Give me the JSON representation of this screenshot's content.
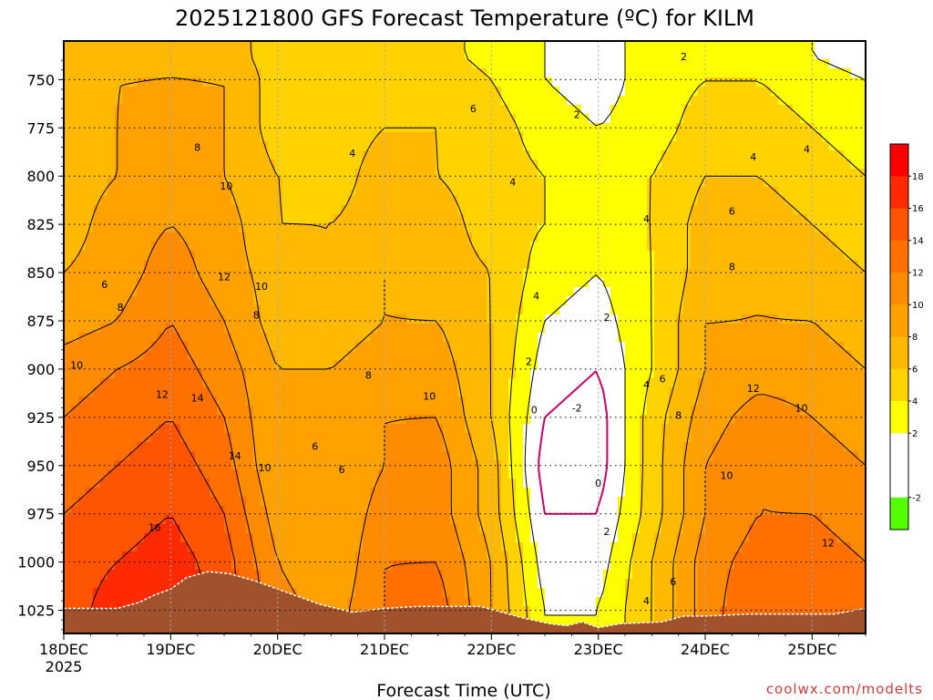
{
  "title": "2025121800 GFS Forecast Temperature (ºC) for KILM",
  "credit": "coolwx.com/modelts",
  "chart_data": {
    "type": "heatmap",
    "title": "2025121800 GFS Forecast Temperature (ºC) for KILM",
    "xlabel": "Forecast Time (UTC)",
    "ylabel": "",
    "x_ticks": [
      {
        "label": "18DEC",
        "sublabel": "2025",
        "day": 0
      },
      {
        "label": "19DEC",
        "day": 1
      },
      {
        "label": "20DEC",
        "day": 2
      },
      {
        "label": "21DEC",
        "day": 3
      },
      {
        "label": "22DEC",
        "day": 4
      },
      {
        "label": "23DEC",
        "day": 5
      },
      {
        "label": "24DEC",
        "day": 6
      },
      {
        "label": "25DEC",
        "day": 7
      }
    ],
    "xlim_days": [
      0,
      7.5
    ],
    "y_ticks": [
      750,
      775,
      800,
      825,
      850,
      875,
      900,
      925,
      950,
      975,
      1000,
      1025
    ],
    "ylim_hpa": [
      730,
      1037
    ],
    "levels_hpa": [
      750,
      775,
      800,
      825,
      850,
      875,
      900,
      925,
      950,
      975,
      1000,
      1025
    ],
    "times_days": [
      0,
      0.5,
      1,
      1.5,
      2,
      2.5,
      3,
      3.5,
      4,
      4.5,
      5,
      5.5,
      6,
      6.5,
      7,
      7.5
    ],
    "temperature_grid": [
      [
        6,
        7,
        8,
        7,
        5,
        4,
        4,
        5,
        3,
        2,
        1,
        3,
        3,
        3,
        2,
        1
      ],
      [
        7,
        8,
        8,
        8,
        5,
        4,
        5,
        6,
        4,
        2,
        1,
        3,
        4,
        4,
        3,
        2
      ],
      [
        7,
        8,
        9,
        8,
        5,
        5,
        6,
        6,
        5,
        3,
        2,
        3,
        5,
        5,
        4,
        3
      ],
      [
        7,
        8,
        9,
        8,
        6,
        5,
        7,
        6,
        5,
        4,
        3,
        4,
        6,
        6,
        5,
        4
      ],
      [
        7,
        9,
        10,
        9,
        6,
        6,
        7,
        7,
        5,
        4,
        3,
        4,
        7,
        7,
        6,
        5
      ],
      [
        8,
        9,
        11,
        9,
        7,
        6,
        8,
        7,
        6,
        3,
        2,
        4,
        7,
        8,
        7,
        6
      ],
      [
        9,
        10,
        12,
        10,
        7,
        7,
        8,
        8,
        6,
        2,
        1,
        4,
        8,
        8,
        8,
        7
      ],
      [
        11,
        12,
        13,
        11,
        8,
        8,
        9,
        9,
        6,
        1,
        0,
        4,
        8,
        9,
        9,
        8
      ],
      [
        12,
        13,
        14,
        12,
        8,
        8,
        10,
        10,
        6,
        0,
        -1,
        5,
        9,
        11,
        10,
        9
      ],
      [
        13,
        14,
        15,
        13,
        8,
        8,
        10,
        11,
        7,
        -1,
        -1,
        5,
        10,
        12,
        11,
        10
      ],
      [
        14,
        15,
        16,
        14,
        9,
        8,
        11,
        11,
        7,
        0,
        0,
        5,
        10,
        12,
        12,
        11
      ],
      [
        15,
        16,
        17,
        15,
        10,
        8,
        12,
        12,
        8,
        1,
        1,
        6,
        11,
        13,
        13,
        12
      ],
      [
        15,
        17,
        18,
        15,
        11,
        9,
        12,
        13,
        8,
        2,
        2,
        6,
        11,
        14,
        14,
        13
      ]
    ],
    "grid_pressure_hpa": [
      738,
      750,
      775,
      800,
      825,
      850,
      875,
      900,
      925,
      950,
      975,
      1000,
      1025
    ],
    "contour_labels": [
      {
        "t": 0.38,
        "p": 856,
        "text": "6"
      },
      {
        "t": 0.53,
        "p": 868,
        "text": "8"
      },
      {
        "t": 0.12,
        "p": 898,
        "text": "10"
      },
      {
        "t": 0.92,
        "p": 913,
        "text": "12"
      },
      {
        "t": 0.85,
        "p": 982,
        "text": "16"
      },
      {
        "t": 1.52,
        "p": 805,
        "text": "10"
      },
      {
        "t": 1.5,
        "p": 852,
        "text": "12"
      },
      {
        "t": 1.25,
        "p": 785,
        "text": "8"
      },
      {
        "t": 1.25,
        "p": 915,
        "text": "14"
      },
      {
        "t": 1.6,
        "p": 945,
        "text": "14"
      },
      {
        "t": 1.85,
        "p": 857,
        "text": "10"
      },
      {
        "t": 1.8,
        "p": 872,
        "text": "8"
      },
      {
        "t": 1.88,
        "p": 951,
        "text": "10"
      },
      {
        "t": 2.35,
        "p": 940,
        "text": "6"
      },
      {
        "t": 2.6,
        "p": 952,
        "text": "6"
      },
      {
        "t": 2.7,
        "p": 788,
        "text": "4"
      },
      {
        "t": 2.85,
        "p": 903,
        "text": "8"
      },
      {
        "t": 3.42,
        "p": 914,
        "text": "10"
      },
      {
        "t": 3.83,
        "p": 765,
        "text": "6"
      },
      {
        "t": 4.2,
        "p": 803,
        "text": "4"
      },
      {
        "t": 4.42,
        "p": 862,
        "text": "4"
      },
      {
        "t": 4.35,
        "p": 896,
        "text": "2"
      },
      {
        "t": 4.4,
        "p": 921,
        "text": "0"
      },
      {
        "t": 4.8,
        "p": 920,
        "text": "-2"
      },
      {
        "t": 5.0,
        "p": 959,
        "text": "0"
      },
      {
        "t": 5.08,
        "p": 873,
        "text": "2"
      },
      {
        "t": 5.08,
        "p": 984,
        "text": "2"
      },
      {
        "t": 4.8,
        "p": 768,
        "text": "2"
      },
      {
        "t": 5.8,
        "p": 738,
        "text": "2"
      },
      {
        "t": 5.45,
        "p": 822,
        "text": "4"
      },
      {
        "t": 5.45,
        "p": 908,
        "text": "4"
      },
      {
        "t": 5.6,
        "p": 905,
        "text": "6"
      },
      {
        "t": 5.7,
        "p": 1010,
        "text": "6"
      },
      {
        "t": 5.45,
        "p": 1020,
        "text": "4"
      },
      {
        "t": 5.75,
        "p": 924,
        "text": "8"
      },
      {
        "t": 6.2,
        "p": 955,
        "text": "10"
      },
      {
        "t": 6.45,
        "p": 910,
        "text": "12"
      },
      {
        "t": 6.45,
        "p": 790,
        "text": "4"
      },
      {
        "t": 6.25,
        "p": 818,
        "text": "6"
      },
      {
        "t": 6.25,
        "p": 847,
        "text": "8"
      },
      {
        "t": 6.95,
        "p": 786,
        "text": "4"
      },
      {
        "t": 6.9,
        "p": 920,
        "text": "10"
      },
      {
        "t": 7.15,
        "p": 990,
        "text": "12"
      }
    ],
    "terrain_surface_hpa": [
      [
        0,
        1024
      ],
      [
        0.5,
        1024
      ],
      [
        0.7,
        1021
      ],
      [
        0.85,
        1017
      ],
      [
        1.0,
        1014
      ],
      [
        1.15,
        1008
      ],
      [
        1.35,
        1005
      ],
      [
        1.55,
        1006
      ],
      [
        1.8,
        1010
      ],
      [
        2.1,
        1016
      ],
      [
        2.4,
        1022
      ],
      [
        2.7,
        1026
      ],
      [
        3.0,
        1024
      ],
      [
        3.3,
        1023
      ],
      [
        3.6,
        1023
      ],
      [
        3.9,
        1023
      ],
      [
        4.1,
        1026
      ],
      [
        4.3,
        1029
      ],
      [
        4.55,
        1032
      ],
      [
        4.7,
        1033
      ],
      [
        4.85,
        1031
      ],
      [
        5.0,
        1034
      ],
      [
        5.2,
        1032
      ],
      [
        5.6,
        1031
      ],
      [
        5.8,
        1028
      ],
      [
        6.0,
        1028
      ],
      [
        6.4,
        1027
      ],
      [
        6.8,
        1027
      ],
      [
        7.2,
        1027
      ],
      [
        7.5,
        1024
      ]
    ],
    "colorbar": {
      "ticks": [
        18,
        16,
        14,
        12,
        10,
        8,
        6,
        4,
        2,
        -2
      ],
      "bins": [
        {
          "min": 18,
          "max": 20,
          "color": "#ff0000"
        },
        {
          "min": 16,
          "max": 18,
          "color": "#ff2a00"
        },
        {
          "min": 14,
          "max": 16,
          "color": "#ff5500"
        },
        {
          "min": 12,
          "max": 14,
          "color": "#ff7000"
        },
        {
          "min": 10,
          "max": 12,
          "color": "#ff8b00"
        },
        {
          "min": 8,
          "max": 10,
          "color": "#ffa200"
        },
        {
          "min": 6,
          "max": 8,
          "color": "#ffb900"
        },
        {
          "min": 4,
          "max": 6,
          "color": "#ffd200"
        },
        {
          "min": 2,
          "max": 4,
          "color": "#ffff00"
        },
        {
          "min": 0,
          "max": 2,
          "color": "#ffffff"
        },
        {
          "min": -2,
          "max": 0,
          "color": "#ffffff"
        },
        {
          "min": -4,
          "max": -2,
          "color": "#55ff00"
        }
      ]
    },
    "terrain_color": "#a0522d",
    "freezing_contour_color": "#cc0066",
    "grid": true
  }
}
